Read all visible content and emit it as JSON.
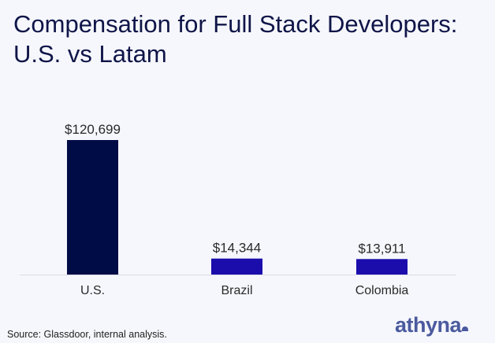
{
  "chart_data": {
    "type": "bar",
    "title": "Compensation for Full Stack Developers: U.S. vs Latam",
    "title_lines": [
      "Compensation for Full Stack Developers:",
      "U.S. vs Latam"
    ],
    "categories": [
      "U.S.",
      "Brazil",
      "Colombia"
    ],
    "values": [
      120699,
      14344,
      13911
    ],
    "data_labels": [
      "$120,699",
      "$14,344",
      "$13,911"
    ],
    "bar_colors": [
      "#000c45",
      "#1a0dab",
      "#1a0dab"
    ],
    "xlabel": "",
    "ylabel": "",
    "ylim": [
      0,
      120699
    ],
    "grid": false,
    "legend": "none"
  },
  "footer": {
    "source": "Source: Glassdoor, internal analysis.",
    "logo": "athyna"
  },
  "colors": {
    "background": "#f6f7fc",
    "title": "#0f1548",
    "logo": "#4b5a9e"
  }
}
